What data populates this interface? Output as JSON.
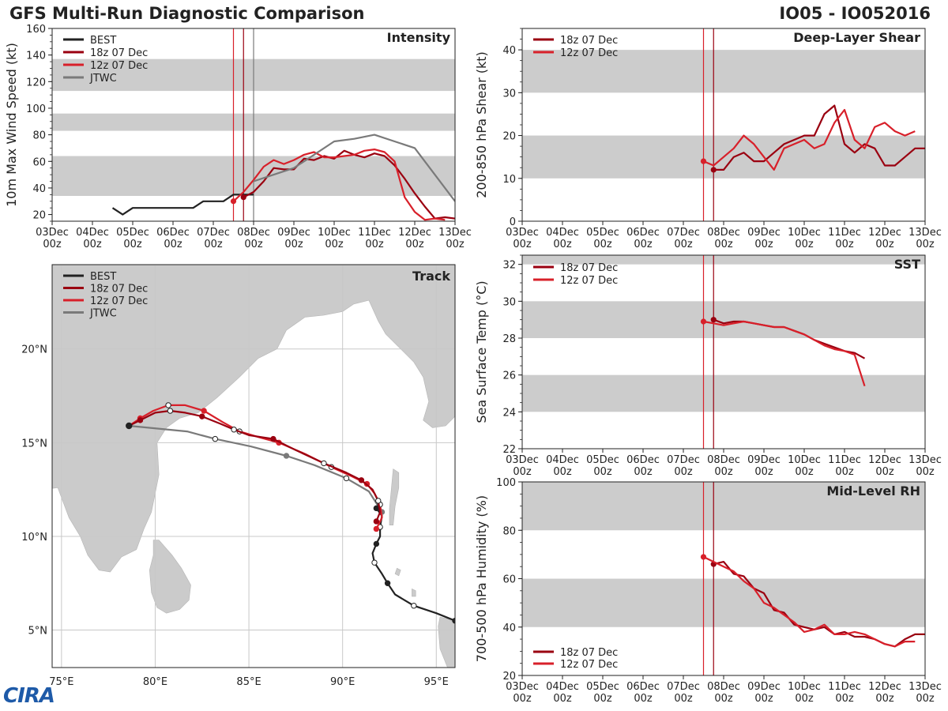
{
  "header": {
    "title": "GFS Multi-Run Diagnostic Comparison",
    "storm": "IO05 - IO052016"
  },
  "logo_text": "CIRA",
  "colors": {
    "best": "#222222",
    "run18": "#9a0010",
    "run12": "#d8202a",
    "jtwc": "#7a7a7a",
    "band": "#cccccc",
    "grid": "#c8c8c8",
    "land": "#cbcbcb"
  },
  "time_ticks": [
    "03Dec",
    "04Dec",
    "05Dec",
    "06Dec",
    "07Dec",
    "08Dec",
    "09Dec",
    "10Dec",
    "11Dec",
    "12Dec",
    "13Dec"
  ],
  "time_sub": "00z",
  "chart_data": [
    {
      "id": "intensity",
      "type": "line",
      "title": "Intensity",
      "ylabel": "10m Max Wind Speed (kt)",
      "ylim": [
        15,
        160
      ],
      "yticks": [
        20,
        40,
        60,
        80,
        100,
        120,
        140,
        160
      ],
      "xlim_days": [
        0,
        10
      ],
      "bands": [
        [
          34,
          64
        ],
        [
          83,
          96
        ],
        [
          113,
          137
        ]
      ],
      "vlines": [
        {
          "x": 4.5,
          "color": "run12"
        },
        {
          "x": 4.75,
          "color": "run18"
        },
        {
          "x": 5.0,
          "color": "jtwc"
        }
      ],
      "legend": [
        "BEST",
        "18z 07 Dec",
        "12z 07 Dec",
        "JTWC"
      ],
      "series": [
        {
          "name": "BEST",
          "color": "best",
          "x": [
            1.5,
            1.75,
            2.0,
            2.25,
            2.5,
            2.75,
            3.0,
            3.25,
            3.5,
            3.75,
            4.0,
            4.25,
            4.5,
            4.75,
            5.0
          ],
          "y": [
            25,
            20,
            25,
            25,
            25,
            25,
            25,
            25,
            25,
            30,
            30,
            30,
            35,
            35,
            35
          ]
        },
        {
          "name": "18z 07 Dec",
          "color": "run18",
          "start_marker": true,
          "x": [
            4.75,
            5.0,
            5.25,
            5.5,
            5.75,
            6.0,
            6.25,
            6.5,
            6.75,
            7.0,
            7.25,
            7.5,
            7.75,
            8.0,
            8.25,
            8.5,
            8.75,
            9.0,
            9.25,
            9.5,
            9.75,
            10.0
          ],
          "y": [
            33,
            37,
            45,
            55,
            54,
            54,
            62,
            61,
            64,
            62,
            68,
            65,
            63,
            66,
            64,
            57,
            47,
            36,
            26,
            17,
            18,
            17
          ]
        },
        {
          "name": "12z 07 Dec",
          "color": "run12",
          "start_marker": true,
          "x": [
            4.5,
            4.75,
            5.0,
            5.25,
            5.5,
            5.75,
            6.0,
            6.25,
            6.5,
            6.75,
            7.0,
            7.25,
            7.5,
            7.75,
            8.0,
            8.25,
            8.5,
            8.75,
            9.0,
            9.25,
            9.5,
            9.75
          ],
          "y": [
            30,
            37,
            46,
            56,
            61,
            58,
            61,
            65,
            67,
            63,
            63,
            64,
            65,
            68,
            69,
            67,
            60,
            33,
            22,
            16,
            17,
            16
          ]
        },
        {
          "name": "JTWC",
          "color": "jtwc",
          "x": [
            5.0,
            5.5,
            6.0,
            6.5,
            7.0,
            7.5,
            8.0,
            8.5,
            9.0,
            10.0
          ],
          "y": [
            45,
            50,
            55,
            65,
            75,
            77,
            80,
            75,
            70,
            30
          ]
        }
      ]
    },
    {
      "id": "shear",
      "type": "line",
      "title": "Deep-Layer Shear",
      "ylabel": "200-850 hPa Shear (kt)",
      "ylim": [
        0,
        45
      ],
      "yticks": [
        0,
        10,
        20,
        30,
        40
      ],
      "xlim_days": [
        0,
        10
      ],
      "bands": [
        [
          10,
          20
        ],
        [
          30,
          40
        ]
      ],
      "vlines": [
        {
          "x": 4.5,
          "color": "run12"
        },
        {
          "x": 4.75,
          "color": "run18"
        }
      ],
      "legend": [
        "18z 07 Dec",
        "12z 07 Dec"
      ],
      "series": [
        {
          "name": "18z 07 Dec",
          "color": "run18",
          "start_marker": true,
          "x": [
            4.75,
            5.0,
            5.25,
            5.5,
            5.75,
            6.0,
            6.25,
            6.5,
            6.75,
            7.0,
            7.25,
            7.5,
            7.75,
            8.0,
            8.25,
            8.5,
            8.75,
            9.0,
            9.25,
            9.5,
            9.75,
            10.0
          ],
          "y": [
            12,
            12,
            15,
            16,
            14,
            14,
            16,
            18,
            19,
            20,
            20,
            25,
            27,
            18,
            16,
            18,
            17,
            13,
            13,
            15,
            17,
            17
          ]
        },
        {
          "name": "12z 07 Dec",
          "color": "run12",
          "start_marker": true,
          "x": [
            4.5,
            4.75,
            5.0,
            5.25,
            5.5,
            5.75,
            6.0,
            6.25,
            6.5,
            6.75,
            7.0,
            7.25,
            7.5,
            7.75,
            8.0,
            8.25,
            8.5,
            8.75,
            9.0,
            9.25,
            9.5,
            9.75
          ],
          "y": [
            14,
            13,
            15,
            17,
            20,
            18,
            15,
            12,
            17,
            18,
            19,
            17,
            18,
            23,
            26,
            19,
            17,
            22,
            23,
            21,
            20,
            21
          ]
        }
      ]
    },
    {
      "id": "sst",
      "type": "line",
      "title": "SST",
      "ylabel": "Sea Surface Temp (°C)",
      "ylim": [
        22,
        32.5
      ],
      "yticks": [
        22,
        24,
        26,
        28,
        30,
        32
      ],
      "xlim_days": [
        0,
        10
      ],
      "bands": [
        [
          24,
          26
        ],
        [
          28,
          30
        ],
        [
          32,
          32.5
        ]
      ],
      "vlines": [
        {
          "x": 4.5,
          "color": "run12"
        },
        {
          "x": 4.75,
          "color": "run18"
        }
      ],
      "legend": [
        "18z 07 Dec",
        "12z 07 Dec"
      ],
      "series": [
        {
          "name": "18z 07 Dec",
          "color": "run18",
          "start_marker": true,
          "x": [
            4.75,
            5.0,
            5.25,
            5.5,
            5.75,
            6.0,
            6.25,
            6.5,
            6.75,
            7.0,
            7.25,
            7.5,
            7.75,
            8.0,
            8.25,
            8.5
          ],
          "y": [
            29.0,
            28.8,
            28.9,
            28.9,
            28.8,
            28.7,
            28.6,
            28.6,
            28.4,
            28.2,
            27.9,
            27.7,
            27.5,
            27.3,
            27.2,
            26.9
          ]
        },
        {
          "name": "12z 07 Dec",
          "color": "run12",
          "start_marker": true,
          "x": [
            4.5,
            4.75,
            5.0,
            5.25,
            5.5,
            5.75,
            6.0,
            6.25,
            6.5,
            6.75,
            7.0,
            7.25,
            7.5,
            7.75,
            8.0,
            8.25,
            8.5
          ],
          "y": [
            28.9,
            28.8,
            28.7,
            28.8,
            28.9,
            28.8,
            28.7,
            28.6,
            28.6,
            28.4,
            28.2,
            27.9,
            27.6,
            27.4,
            27.3,
            27.1,
            25.4
          ]
        }
      ]
    },
    {
      "id": "rh",
      "type": "line",
      "title": "Mid-Level RH",
      "ylabel": "700-500 hPa Humidity (%)",
      "ylim": [
        20,
        100
      ],
      "yticks": [
        20,
        40,
        60,
        80,
        100
      ],
      "xlim_days": [
        0,
        10
      ],
      "bands": [
        [
          40,
          60
        ],
        [
          80,
          100
        ]
      ],
      "vlines": [
        {
          "x": 4.5,
          "color": "run12"
        },
        {
          "x": 4.75,
          "color": "run18"
        }
      ],
      "legend": [
        "18z 07 Dec",
        "12z 07 Dec"
      ],
      "series": [
        {
          "name": "18z 07 Dec",
          "color": "run18",
          "start_marker": true,
          "x": [
            4.75,
            5.0,
            5.25,
            5.5,
            5.75,
            6.0,
            6.25,
            6.5,
            6.75,
            7.0,
            7.25,
            7.5,
            7.75,
            8.0,
            8.25,
            8.5,
            8.75,
            9.0,
            9.25,
            9.5,
            9.75,
            10.0
          ],
          "y": [
            66,
            67,
            62,
            61,
            56,
            54,
            47,
            46,
            41,
            40,
            39,
            40,
            37,
            38,
            36,
            36,
            35,
            33,
            32,
            35,
            37,
            37
          ]
        },
        {
          "name": "12z 07 Dec",
          "color": "run12",
          "start_marker": true,
          "x": [
            4.5,
            4.75,
            5.0,
            5.25,
            5.5,
            5.75,
            6.0,
            6.25,
            6.5,
            6.75,
            7.0,
            7.25,
            7.5,
            7.75,
            8.0,
            8.25,
            8.5,
            8.75,
            9.0,
            9.25,
            9.5,
            9.75
          ],
          "y": [
            69,
            67,
            65,
            63,
            59,
            56,
            50,
            48,
            45,
            42,
            38,
            39,
            41,
            37,
            37,
            38,
            37,
            35,
            33,
            32,
            34,
            34
          ]
        }
      ]
    },
    {
      "id": "track",
      "type": "map",
      "title": "Track",
      "xlim_lon": [
        74.5,
        96.0
      ],
      "ylim_lat": [
        3.0,
        24.5
      ],
      "lon_ticks": [
        75,
        80,
        85,
        90,
        95
      ],
      "lat_ticks": [
        5,
        10,
        15,
        20
      ],
      "lon_labels": [
        "75°E",
        "80°E",
        "85°E",
        "90°E",
        "95°E"
      ],
      "lat_labels": [
        "5°N",
        "10°N",
        "15°N",
        "20°N"
      ],
      "legend": [
        "BEST",
        "18z 07 Dec",
        "12z 07 Dec",
        "JTWC"
      ],
      "series": [
        {
          "name": "BEST",
          "color": "best",
          "lon": [
            96.0,
            95.0,
            93.8,
            92.8,
            92.4,
            92.1,
            91.7,
            91.6,
            91.8,
            92.0,
            92.0,
            92.1,
            91.8
          ],
          "lat": [
            5.5,
            5.9,
            6.3,
            6.9,
            7.5,
            8.0,
            8.6,
            9.1,
            9.6,
            10.0,
            10.5,
            11.1,
            11.5
          ]
        },
        {
          "name": "18z 07 Dec",
          "color": "run18",
          "lon": [
            91.8,
            92.0,
            91.9,
            91.6,
            91.0,
            90.2,
            89.0,
            87.5,
            86.3,
            85.0,
            84.2,
            83.5,
            82.5,
            81.6,
            80.8,
            80.0,
            79.2,
            78.6
          ],
          "lat": [
            10.8,
            11.3,
            11.9,
            12.5,
            13.0,
            13.4,
            13.9,
            14.6,
            15.2,
            15.4,
            15.7,
            16.0,
            16.4,
            16.6,
            16.7,
            16.6,
            16.2,
            15.9
          ]
        },
        {
          "name": "12z 07 Dec",
          "color": "run12",
          "lon": [
            91.8,
            92.1,
            92.0,
            91.7,
            91.3,
            90.5,
            89.4,
            88.0,
            86.6,
            85.5,
            84.5,
            83.6,
            82.6,
            81.6,
            80.7,
            79.9,
            79.2,
            78.6
          ],
          "lat": [
            10.4,
            11.0,
            11.7,
            12.3,
            12.8,
            13.2,
            13.7,
            14.4,
            15.0,
            15.3,
            15.6,
            16.1,
            16.7,
            17.0,
            17.0,
            16.7,
            16.3,
            15.9
          ]
        },
        {
          "name": "JTWC",
          "color": "jtwc",
          "lon": [
            92.1,
            91.4,
            90.2,
            88.5,
            87.0,
            85.1,
            83.2,
            81.7,
            78.6
          ],
          "lat": [
            11.3,
            12.4,
            13.1,
            13.8,
            14.3,
            14.8,
            15.2,
            15.6,
            15.9
          ]
        }
      ]
    }
  ]
}
